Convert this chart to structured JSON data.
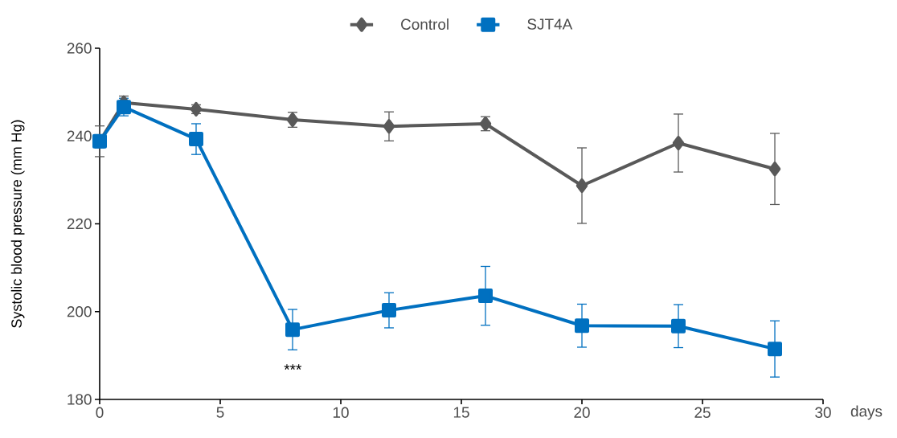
{
  "chart_data": {
    "type": "line",
    "xlabel": "days",
    "ylabel": "Systolic blood pressure (mm Hg)",
    "x": [
      0,
      1,
      4,
      8,
      12,
      16,
      20,
      24,
      28
    ],
    "xlim": [
      0,
      30
    ],
    "xticks": [
      0,
      5,
      10,
      15,
      20,
      25,
      30
    ],
    "ylim": [
      180,
      260
    ],
    "yticks": [
      180,
      200,
      220,
      240,
      260
    ],
    "grid": false,
    "legend": "top",
    "line_style": "solid",
    "series": [
      {
        "name": "Control",
        "color": "#595959",
        "marker": "diamond",
        "values": [
          238.8,
          247.6,
          246.1,
          243.7,
          242.2,
          242.8,
          228.7,
          238.4,
          232.5
        ],
        "errors": [
          3.5,
          1.5,
          1.0,
          1.7,
          3.3,
          1.6,
          8.6,
          6.6,
          8.1
        ]
      },
      {
        "name": "SJT4A",
        "color": "#0070c0",
        "marker": "square",
        "values": [
          238.8,
          246.6,
          239.3,
          195.9,
          200.3,
          203.6,
          196.8,
          196.7,
          191.5
        ],
        "errors": [
          1.5,
          2.0,
          3.5,
          4.6,
          4.0,
          6.7,
          4.9,
          4.9,
          6.4
        ]
      }
    ],
    "annotations": [
      "***"
    ]
  }
}
